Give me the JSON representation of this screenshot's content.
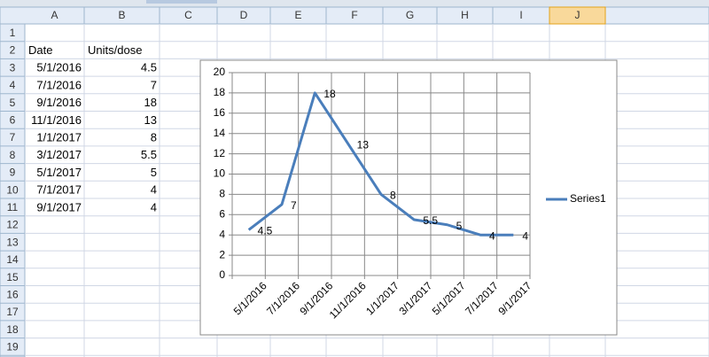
{
  "sheet": {
    "columns": [
      "A",
      "B",
      "C",
      "D",
      "E",
      "F",
      "G",
      "H",
      "I",
      "J"
    ],
    "row_numbers": [
      1,
      2,
      3,
      4,
      5,
      6,
      7,
      8,
      9,
      10,
      11,
      12,
      13,
      14,
      15,
      16,
      17,
      18,
      19
    ],
    "header": [
      "Date",
      "Units/dose"
    ]
  },
  "chart_data": {
    "type": "line",
    "categories": [
      "5/1/2016",
      "7/1/2016",
      "9/1/2016",
      "11/1/2016",
      "1/1/2017",
      "3/1/2017",
      "5/1/2017",
      "7/1/2017",
      "9/1/2017"
    ],
    "series": [
      {
        "name": "Series1",
        "color": "#4a7ebb",
        "values": [
          4.5,
          7,
          18,
          13,
          8,
          5.5,
          5,
          4,
          4
        ]
      }
    ],
    "ylim": [
      0,
      20
    ],
    "yticks": [
      0,
      2,
      4,
      6,
      8,
      10,
      12,
      14,
      16,
      18,
      20
    ],
    "grid": true,
    "data_labels": true,
    "legend": "right"
  }
}
